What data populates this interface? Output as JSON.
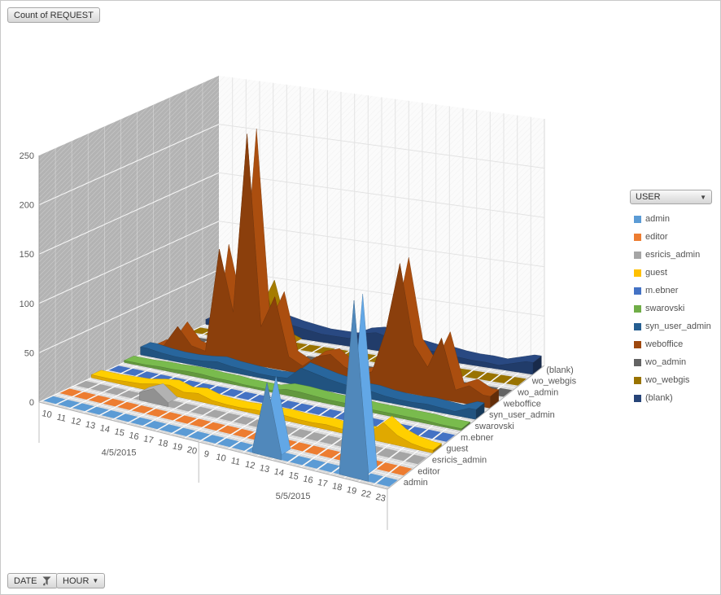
{
  "buttons": {
    "value_field": {
      "label": "Count of REQUEST"
    },
    "legend_field": {
      "label": "USER",
      "icon": "dropdown-arrow-icon"
    },
    "date_field": {
      "label": "DATE",
      "icons": [
        "filter-active-icon",
        "dropdown-arrow-icon"
      ]
    },
    "hour_field": {
      "label": "HOUR",
      "icons": [
        "dropdown-arrow-icon"
      ]
    }
  },
  "legend": {
    "field_label": "USER"
  },
  "chart_data": {
    "type": "area",
    "variant": "3d-area",
    "title": "Count of REQUEST",
    "value_axis": {
      "min": 0,
      "max": 250,
      "step": 50,
      "ticks": [
        0,
        50,
        100,
        150,
        200,
        250
      ]
    },
    "category_axis": {
      "groups": [
        {
          "date": "4/5/2015",
          "hours": [
            "10",
            "11",
            "12",
            "13",
            "14",
            "15",
            "16",
            "17",
            "18",
            "19",
            "20"
          ]
        },
        {
          "date": "5/5/2015",
          "hours": [
            "9",
            "10",
            "11",
            "12",
            "13",
            "14",
            "15",
            "16",
            "17",
            "18",
            "19",
            "22",
            "23"
          ]
        }
      ]
    },
    "series": [
      {
        "name": "admin",
        "color": "#5B9BD5",
        "values": [
          2,
          1,
          1,
          1,
          2,
          1,
          1,
          1,
          1,
          1,
          1,
          2,
          2,
          3,
          4,
          75,
          5,
          2,
          2,
          3,
          5,
          180,
          8,
          2
        ]
      },
      {
        "name": "editor",
        "color": "#ED7D31",
        "values": [
          3,
          2,
          2,
          2,
          3,
          3,
          2,
          2,
          2,
          2,
          2,
          5,
          4,
          3,
          3,
          3,
          3,
          2,
          2,
          3,
          4,
          6,
          8,
          4
        ]
      },
      {
        "name": "esricis_admin",
        "color": "#A5A5A5",
        "values": [
          1,
          1,
          1,
          1,
          8,
          15,
          4,
          2,
          1,
          1,
          1,
          2,
          2,
          2,
          2,
          2,
          3,
          2,
          2,
          2,
          2,
          2,
          1,
          1
        ]
      },
      {
        "name": "guest",
        "color": "#FFC000",
        "values": [
          3,
          3,
          4,
          5,
          8,
          10,
          6,
          8,
          4,
          3,
          3,
          4,
          4,
          5,
          4,
          4,
          5,
          4,
          5,
          6,
          20,
          10,
          5,
          3
        ]
      },
      {
        "name": "m.ebner",
        "color": "#4472C4",
        "values": [
          1,
          1,
          1,
          1,
          2,
          2,
          1,
          1,
          1,
          1,
          1,
          3,
          3,
          3,
          2,
          2,
          2,
          2,
          2,
          2,
          2,
          2,
          1,
          1
        ]
      },
      {
        "name": "swarovski",
        "color": "#70AD47",
        "values": [
          2,
          2,
          3,
          3,
          4,
          4,
          3,
          3,
          2,
          2,
          2,
          6,
          6,
          5,
          4,
          4,
          4,
          3,
          3,
          3,
          3,
          3,
          2,
          2
        ]
      },
      {
        "name": "syn_user_admin",
        "color": "#255E91",
        "values": [
          8,
          6,
          5,
          5,
          6,
          8,
          6,
          5,
          4,
          4,
          5,
          18,
          15,
          12,
          10,
          8,
          8,
          6,
          5,
          5,
          6,
          5,
          4,
          10
        ]
      },
      {
        "name": "weboffice",
        "color": "#9E480E",
        "values": [
          3,
          25,
          8,
          5,
          111,
          50,
          233,
          40,
          73,
          15,
          8,
          20,
          25,
          15,
          10,
          15,
          60,
          130,
          50,
          30,
          62,
          12,
          19,
          12
        ]
      },
      {
        "name": "wo_admin",
        "color": "#636363",
        "values": [
          2,
          2,
          2,
          3,
          5,
          4,
          3,
          2,
          2,
          2,
          2,
          3,
          3,
          3,
          2,
          2,
          2,
          2,
          2,
          2,
          2,
          2,
          2,
          2
        ]
      },
      {
        "name": "wo_webgis",
        "color": "#997300",
        "values": [
          3,
          3,
          4,
          5,
          30,
          60,
          10,
          5,
          4,
          3,
          3,
          5,
          5,
          4,
          4,
          4,
          6,
          10,
          5,
          4,
          4,
          3,
          3,
          3
        ]
      },
      {
        "name": "(blank)",
        "color": "#264478",
        "values": [
          5,
          5,
          6,
          8,
          10,
          15,
          12,
          10,
          8,
          8,
          8,
          15,
          18,
          15,
          12,
          10,
          8,
          8,
          6,
          5,
          5,
          4,
          8,
          12
        ]
      }
    ]
  }
}
